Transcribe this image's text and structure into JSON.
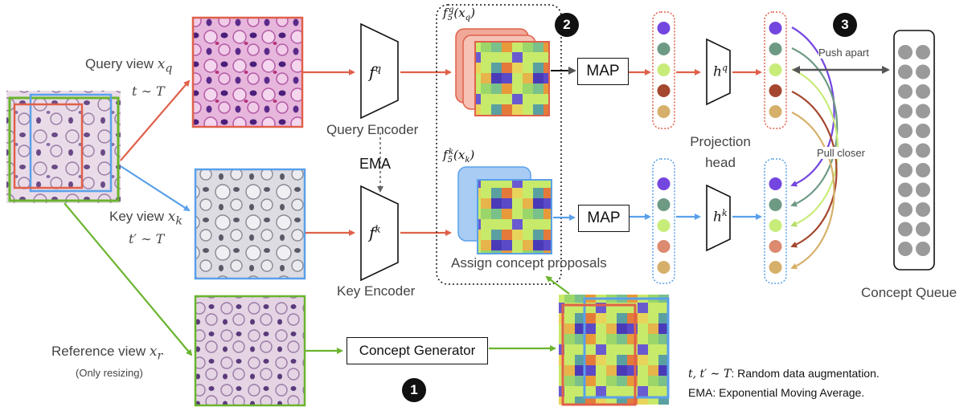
{
  "views": {
    "query": {
      "label": "Query view",
      "var": "x",
      "sub": "q",
      "aug": "t ∼ T"
    },
    "key": {
      "label": "Key view",
      "var": "x",
      "sub": "k",
      "aug": "t′ ∼ T"
    },
    "reference": {
      "label": "Reference view",
      "var": "x",
      "sub": "r",
      "note": "(Only resizing)"
    }
  },
  "encoders": {
    "query": {
      "label": "Query Encoder",
      "symbol": "f",
      "sup": "q"
    },
    "key": {
      "label": "Key Encoder",
      "symbol": "f",
      "sup": "k"
    },
    "ema": "EMA"
  },
  "features": {
    "query": {
      "symbol": "f",
      "sub": "5",
      "sup": "q",
      "arg": "(x",
      "argsub": "q",
      "close": ")"
    },
    "key": {
      "symbol": "f",
      "sub": "5",
      "sup": "k",
      "arg": "(x",
      "argsub": "k",
      "close": ")"
    },
    "assign_label": "Assign concept proposals"
  },
  "pooling": {
    "query": "MAP",
    "key": "MAP"
  },
  "projection": {
    "label_line1": "Projection",
    "label_line2": "head",
    "query_symbol": "h",
    "query_sup": "q",
    "key_symbol": "h",
    "key_sup": "k"
  },
  "contrast": {
    "push": "Push apart",
    "pull": "Pull closer"
  },
  "queue": {
    "label": "Concept Queue",
    "columns": 2,
    "rows": 11
  },
  "generator": {
    "label": "Concept Generator"
  },
  "steps": [
    "1",
    "2",
    "3"
  ],
  "legend": {
    "line1_math": "t, t′ ∼ T",
    "line1_text": ": Random data augmentation.",
    "line2": "EMA: Exponential Moving Average."
  },
  "colors": {
    "query": "#e0604a",
    "key": "#5aa0ea",
    "reference": "#6ab42e",
    "ema": "#888888",
    "concepts": [
      "#7446e0",
      "#6e9a84",
      "#c8ec7a",
      "#a4472e",
      "#d6b06a"
    ],
    "concepts_key": [
      "#7446e0",
      "#6e9a84",
      "#c8ec7a",
      "#dc8a70",
      "#d6b06a"
    ],
    "arrow_colors": [
      "#7446e0",
      "#6e9a84",
      "#c8ec7a",
      "#a4472e",
      "#d6b06a"
    ],
    "queue_dot": "#9a9a9a"
  }
}
